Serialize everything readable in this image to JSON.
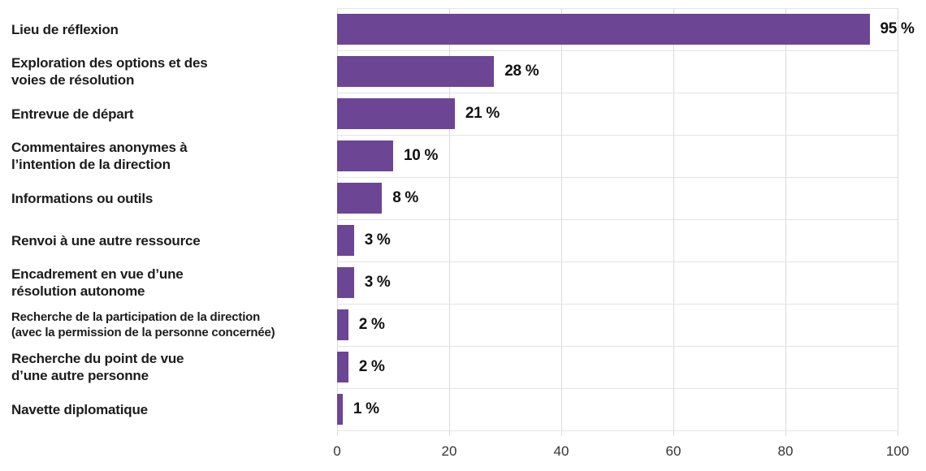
{
  "chart_data": {
    "type": "bar",
    "orientation": "horizontal",
    "title": "",
    "xlabel": "",
    "ylabel": "",
    "categories": [
      "Lieu de réflexion",
      "Exploration des options et des\nvoies de résolution",
      "Entrevue de départ",
      "Commentaires anonymes à\nl’intention de la direction",
      "Informations ou outils",
      "Renvoi à une autre ressource",
      "Encadrement en vue d’une\nrésolution autonome",
      "Recherche de la participation de la direction\n(avec la permission de la personne concernée)",
      "Recherche du point de vue\nd’une autre personne",
      "Navette diplomatique"
    ],
    "values": [
      95,
      28,
      21,
      10,
      8,
      3,
      3,
      2,
      2,
      1
    ],
    "value_labels": [
      "95 %",
      "28 %",
      "21 %",
      "10 %",
      "8 %",
      "3 %",
      "3 %",
      "2 %",
      "2 %",
      "1 %"
    ],
    "xlim": [
      0,
      100
    ],
    "xticks": [
      0,
      20,
      40,
      60,
      80,
      100
    ],
    "xtick_labels": [
      "0",
      "20",
      "40",
      "60",
      "80",
      "100"
    ],
    "grid": "vertical-and-row-separators",
    "legend": "none",
    "bar_color": "#6d4595",
    "gridline_color": "#d9d9d9",
    "row_separator_color": "#e4e4e4",
    "label_color": "#1c1c1c",
    "value_label_color": "#111111",
    "tick_label_color": "#343434"
  }
}
